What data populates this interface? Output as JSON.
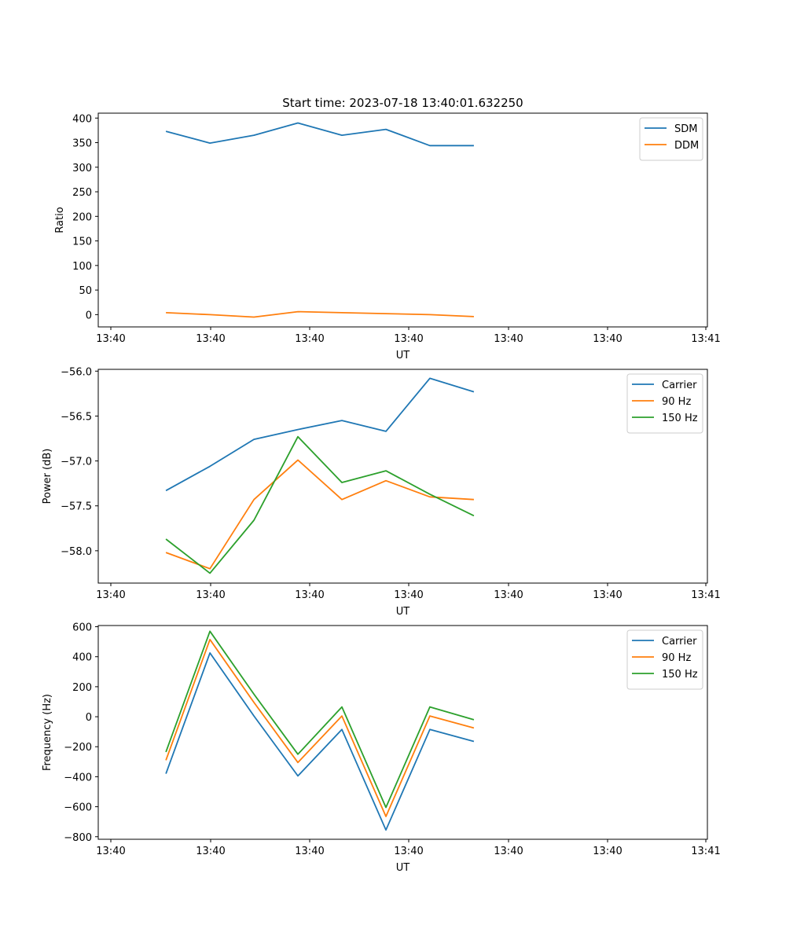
{
  "title": "Start time: 2023-07-18 13:40:01.632250",
  "chart_data": [
    {
      "type": "line",
      "xlabel": "UT",
      "ylabel": "Ratio",
      "xticks": [
        "13:40",
        "13:40",
        "13:40",
        "13:40",
        "13:40",
        "13:40",
        "13:41"
      ],
      "yticks": [
        "0",
        "50",
        "100",
        "150",
        "200",
        "250",
        "300",
        "350",
        "400"
      ],
      "ylim": [
        -25,
        410
      ],
      "xlim": [
        -0.5,
        8.5
      ],
      "x": [
        0.5,
        1.15,
        1.8,
        2.45,
        3.1,
        3.75,
        4.4,
        5.05
      ],
      "legend_location": "upper right",
      "series": [
        {
          "name": "SDM",
          "color": "#1f77b4",
          "values": [
            373,
            349,
            365,
            390,
            365,
            377,
            344,
            344
          ]
        },
        {
          "name": "DDM",
          "color": "#ff7f0e",
          "values": [
            4,
            0,
            -5,
            6,
            4,
            2,
            0,
            -4
          ]
        }
      ]
    },
    {
      "type": "line",
      "xlabel": "UT",
      "ylabel": "Power (dB)",
      "xticks": [
        "13:40",
        "13:40",
        "13:40",
        "13:40",
        "13:40",
        "13:40",
        "13:41"
      ],
      "yticks": [
        "−58.0",
        "−57.5",
        "−57.0",
        "−56.5",
        "−56.0"
      ],
      "ylim": [
        -58.36,
        -55.98
      ],
      "x": [
        0.5,
        1.15,
        1.8,
        2.45,
        3.1,
        3.75,
        4.4,
        5.05
      ],
      "legend_location": "upper right",
      "series": [
        {
          "name": "Carrier",
          "color": "#1f77b4",
          "values": [
            -57.33,
            -57.06,
            -56.76,
            -56.65,
            -56.55,
            -56.67,
            -56.08,
            -56.23
          ]
        },
        {
          "name": "90 Hz",
          "color": "#ff7f0e",
          "values": [
            -58.02,
            -58.2,
            -57.43,
            -56.99,
            -57.43,
            -57.22,
            -57.4,
            -57.43
          ]
        },
        {
          "name": "150 Hz",
          "color": "#2ca02c",
          "values": [
            -57.87,
            -58.25,
            -57.66,
            -56.73,
            -57.24,
            -57.11,
            -57.37,
            -57.61
          ]
        }
      ]
    },
    {
      "type": "line",
      "xlabel": "UT",
      "ylabel": "Frequency (Hz)",
      "xticks": [
        "13:40",
        "13:40",
        "13:40",
        "13:40",
        "13:40",
        "13:40",
        "13:41"
      ],
      "yticks": [
        "−800",
        "−600",
        "−400",
        "−200",
        "0",
        "200",
        "400",
        "600"
      ],
      "ylim": [
        -817,
        608
      ],
      "x": [
        0.5,
        1.15,
        1.8,
        2.45,
        3.1,
        3.75,
        4.4,
        5.05
      ],
      "legend_location": "upper right",
      "series": [
        {
          "name": "Carrier",
          "color": "#1f77b4",
          "values": [
            -380,
            425,
            5,
            -395,
            -85,
            -755,
            -85,
            -165
          ]
        },
        {
          "name": "90 Hz",
          "color": "#ff7f0e",
          "values": [
            -290,
            515,
            95,
            -305,
            5,
            -665,
            5,
            -75
          ]
        },
        {
          "name": "150 Hz",
          "color": "#2ca02c",
          "values": [
            -235,
            570,
            150,
            -250,
            65,
            -605,
            65,
            -20
          ]
        }
      ]
    }
  ]
}
